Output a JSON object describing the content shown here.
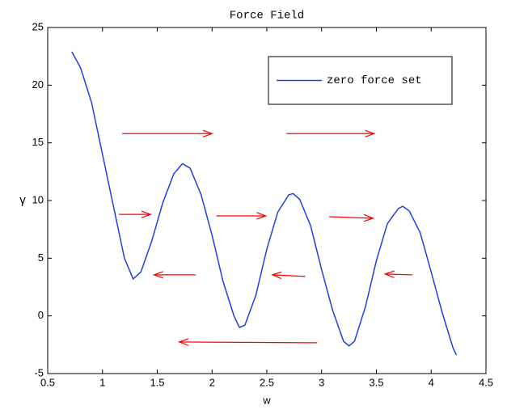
{
  "chart_data": {
    "type": "line",
    "title": "Force Field",
    "x_label": "w",
    "y_label": "γ",
    "xlim": [
      0.5,
      4.5
    ],
    "ylim": [
      -5,
      25
    ],
    "xticks": [
      0.5,
      1,
      1.5,
      2,
      2.5,
      3,
      3.5,
      4,
      4.5
    ],
    "yticks": [
      -5,
      0,
      5,
      10,
      15,
      20,
      25
    ],
    "legend": "northeast",
    "x": [
      0.72,
      0.8,
      0.9,
      1.0,
      1.1,
      1.2,
      1.28,
      1.35,
      1.45,
      1.55,
      1.65,
      1.73,
      1.8,
      1.9,
      2.0,
      2.1,
      2.2,
      2.25,
      2.3,
      2.4,
      2.5,
      2.6,
      2.7,
      2.74,
      2.8,
      2.9,
      3.0,
      3.1,
      3.2,
      3.25,
      3.3,
      3.4,
      3.5,
      3.6,
      3.7,
      3.74,
      3.8,
      3.9,
      4.0,
      4.1,
      4.2,
      4.23
    ],
    "series": [
      {
        "name": "zero force set",
        "color": "#1f3fe0",
        "values": [
          22.9,
          21.5,
          18.5,
          14,
          9.5,
          5,
          3.2,
          3.8,
          6.5,
          9.8,
          12.3,
          13.2,
          12.8,
          10.5,
          7,
          3,
          0,
          -1,
          -0.8,
          1.8,
          5.8,
          9,
          10.5,
          10.6,
          10.1,
          7.8,
          4,
          0.5,
          -2.2,
          -2.6,
          -2.2,
          0.8,
          4.8,
          8,
          9.3,
          9.5,
          9.1,
          7.2,
          3.8,
          0.3,
          -2.8,
          -3.4
        ]
      }
    ],
    "quiver": {
      "color": "#ff0000",
      "x": [
        1.18,
        2.68,
        1.15,
        2.04,
        3.07,
        1.85,
        2.85,
        3.83,
        2.96
      ],
      "y": [
        15.8,
        15.8,
        8.8,
        8.67,
        8.6,
        3.56,
        3.42,
        3.56,
        -2.33
      ],
      "u": [
        0.82,
        0.8,
        0.29,
        0.45,
        0.4,
        -0.38,
        -0.3,
        -0.25,
        -1.26
      ],
      "v": [
        0,
        0,
        0,
        0,
        -0.14,
        0,
        0.14,
        0.07,
        0.07
      ]
    }
  }
}
